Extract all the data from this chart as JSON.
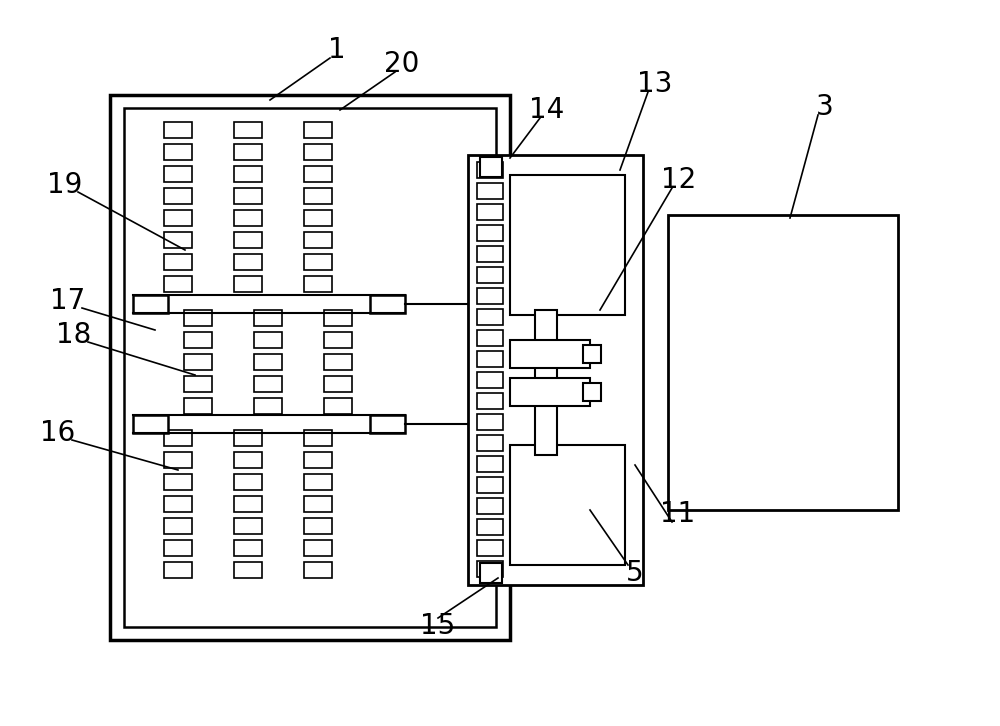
{
  "background_color": "#ffffff",
  "line_color": "#000000",
  "fig_width": 10.0,
  "fig_height": 7.26,
  "label_fontsize": 20
}
